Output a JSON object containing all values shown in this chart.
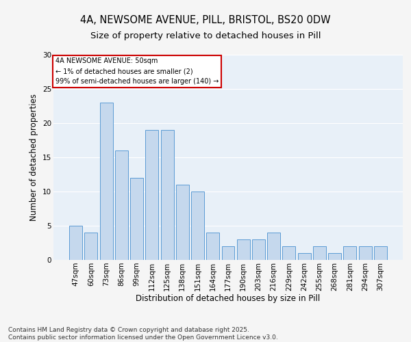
{
  "title_line1": "4A, NEWSOME AVENUE, PILL, BRISTOL, BS20 0DW",
  "title_line2": "Size of property relative to detached houses in Pill",
  "xlabel": "Distribution of detached houses by size in Pill",
  "ylabel": "Number of detached properties",
  "categories": [
    "47sqm",
    "60sqm",
    "73sqm",
    "86sqm",
    "99sqm",
    "112sqm",
    "125sqm",
    "138sqm",
    "151sqm",
    "164sqm",
    "177sqm",
    "190sqm",
    "203sqm",
    "216sqm",
    "229sqm",
    "242sqm",
    "255sqm",
    "268sqm",
    "281sqm",
    "294sqm",
    "307sqm"
  ],
  "values": [
    5,
    4,
    23,
    16,
    12,
    19,
    19,
    11,
    10,
    4,
    2,
    3,
    3,
    4,
    2,
    1,
    2,
    1,
    2,
    2,
    2
  ],
  "bar_color": "#c5d8ed",
  "bar_edge_color": "#5b9bd5",
  "background_color": "#e8f0f8",
  "grid_color": "#ffffff",
  "annotation_box_text": "4A NEWSOME AVENUE: 50sqm\n← 1% of detached houses are smaller (2)\n99% of semi-detached houses are larger (140) →",
  "annotation_box_color": "#ffffff",
  "annotation_box_edge_color": "#cc0000",
  "ylim": [
    0,
    30
  ],
  "yticks": [
    0,
    5,
    10,
    15,
    20,
    25,
    30
  ],
  "footer_text": "Contains HM Land Registry data © Crown copyright and database right 2025.\nContains public sector information licensed under the Open Government Licence v3.0.",
  "title_fontsize": 10.5,
  "subtitle_fontsize": 9.5,
  "axis_label_fontsize": 8.5,
  "tick_fontsize": 7.5,
  "annotation_fontsize": 7,
  "footer_fontsize": 6.5,
  "fig_bg": "#f5f5f5"
}
